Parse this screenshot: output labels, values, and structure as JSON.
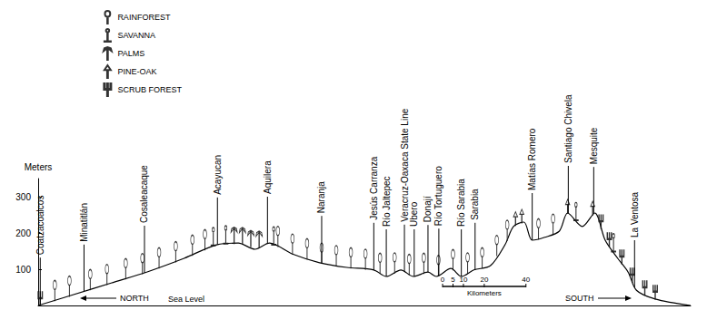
{
  "chart_data": {
    "type": "line",
    "ylabel": "Meters",
    "xlim": [
      0,
      313
    ],
    "ylim": [
      0,
      350
    ],
    "yticks": [
      100,
      200,
      300
    ],
    "tick_labels": "y",
    "grid": false,
    "legend": "top-left",
    "annotations": {
      "north": "NORTH",
      "south": "SOUTH",
      "sea_level": "Sea Level"
    },
    "scale_bar": {
      "label": "Kilometers",
      "ticks": [
        0,
        5,
        10,
        20,
        40
      ]
    },
    "places": [
      {
        "label": "Coatzacoalcos",
        "x": 1,
        "y": 2
      },
      {
        "label": "Minatitlán",
        "x": 22,
        "y": 38
      },
      {
        "label": "Cosaleacaque",
        "x": 51,
        "y": 90
      },
      {
        "label": "Acayucan",
        "x": 86,
        "y": 168
      },
      {
        "label": "Aquilera",
        "x": 110,
        "y": 170
      },
      {
        "label": "Naranja",
        "x": 136,
        "y": 117
      },
      {
        "label": "Jesús Carranza",
        "x": 161,
        "y": 98
      },
      {
        "label": "Río Jaltepec",
        "x": 167,
        "y": 80
      },
      {
        "label": "Veracruz-Oaxaca State Line",
        "x": 175.7,
        "y": 93
      },
      {
        "label": "Ubero",
        "x": 180.4,
        "y": 80
      },
      {
        "label": "Donají",
        "x": 187,
        "y": 92
      },
      {
        "label": "Río Tortuguero",
        "x": 192.2,
        "y": 82
      },
      {
        "label": "Río Sarabia",
        "x": 203,
        "y": 80
      },
      {
        "label": "Sarabia",
        "x": 209.6,
        "y": 98
      },
      {
        "label": "Matías Romero",
        "x": 237,
        "y": 180
      },
      {
        "label": "Santiago Chivela",
        "x": 254.3,
        "y": 255
      },
      {
        "label": "Mesquite",
        "x": 266.5,
        "y": 252
      },
      {
        "label": "La Ventosa",
        "x": 286.1,
        "y": 50
      }
    ],
    "series": [
      {
        "type": "line",
        "color": "#000000",
        "x": [
          0,
          17,
          35,
          52,
          70,
          86,
          96,
          104,
          111,
          122,
          135,
          148,
          161,
          167,
          174,
          180,
          187,
          191,
          198,
          203,
          209,
          217,
          224,
          228,
          233,
          237,
          243,
          250,
          254,
          261,
          267,
          272,
          278,
          283,
          287,
          296,
          313
        ],
        "values": [
          0,
          30,
          62,
          92,
          130,
          168,
          172,
          155,
          172,
          142,
          118,
          105,
          98,
          80,
          98,
          80,
          92,
          80,
          102,
          80,
          98,
          110,
          168,
          218,
          230,
          180,
          188,
          205,
          255,
          218,
          255,
          180,
          130,
          92,
          42,
          18,
          0
        ]
      },
      {
        "type": "scatter",
        "name": "RAINFOREST",
        "marker": "rainforest",
        "color": "#000000",
        "x": [
          8,
          15,
          25,
          33,
          42,
          50,
          58,
          66,
          74,
          80,
          115,
          122,
          129,
          136,
          143,
          150,
          157,
          164,
          171,
          178,
          185,
          192,
          199,
          206,
          213,
          220,
          225,
          240,
          247
        ],
        "values": [
          14,
          26,
          44,
          58,
          74,
          88,
          104,
          121,
          139,
          154,
          163,
          142,
          129,
          117,
          110,
          104,
          100,
          89,
          90,
          86,
          89,
          83,
          99,
          90,
          104,
          138,
          180,
          184,
          197
        ]
      },
      {
        "type": "scatter",
        "name": "SAVANNA",
        "marker": "savanna",
        "color": "#000000",
        "x": [
          84,
          90,
          113,
          258,
          276
        ],
        "values": [
          165,
          170,
          167,
          234,
          148
        ]
      },
      {
        "type": "scatter",
        "name": "PALMS",
        "marker": "palm",
        "color": "#000000",
        "x": [
          94,
          98,
          102,
          106
        ],
        "values": [
          171,
          170,
          162,
          160
        ]
      },
      {
        "type": "scatter",
        "name": "PINE-OAK",
        "marker": "pine-oak",
        "color": "#000000",
        "x": [
          229,
          232,
          254,
          266
        ],
        "values": [
          221,
          228,
          255,
          250
        ]
      },
      {
        "type": "scatter",
        "name": "SCRUB FOREST",
        "marker": "scrub",
        "color": "#000000",
        "x": [
          1,
          270,
          274,
          280,
          285,
          291,
          296
        ],
        "values": [
          0,
          212,
          163,
          115,
          65,
          30,
          18
        ]
      }
    ]
  }
}
